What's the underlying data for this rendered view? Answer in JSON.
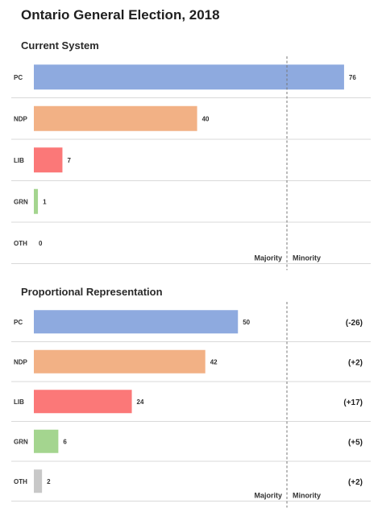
{
  "title": "Ontario General Election, 2018",
  "colors": {
    "PC": "#8eaadf",
    "NDP": "#f2b185",
    "LIB": "#fb7878",
    "GRN": "#a4d58f",
    "OTH": "#c8c8c8",
    "grid": "#d9d9d9",
    "threshold": "#777777"
  },
  "chart_data": [
    {
      "type": "bar",
      "orientation": "horizontal",
      "title": "Current System",
      "categories": [
        "PC",
        "NDP",
        "LIB",
        "GRN",
        "OTH"
      ],
      "values": [
        76,
        40,
        7,
        1,
        0
      ],
      "xlim": [
        0,
        77
      ],
      "threshold": {
        "value": 62,
        "left_label": "Majority",
        "right_label": "Minority"
      }
    },
    {
      "type": "bar",
      "orientation": "horizontal",
      "title": "Proportional Representation",
      "categories": [
        "PC",
        "NDP",
        "LIB",
        "GRN",
        "OTH"
      ],
      "values": [
        50,
        42,
        24,
        6,
        2
      ],
      "changes": [
        "(-26)",
        "(+2)",
        "(+17)",
        "(+5)",
        "(+2)"
      ],
      "xlim": [
        0,
        77
      ],
      "threshold": {
        "value": 62,
        "left_label": "Majority",
        "right_label": "Minority"
      }
    }
  ]
}
